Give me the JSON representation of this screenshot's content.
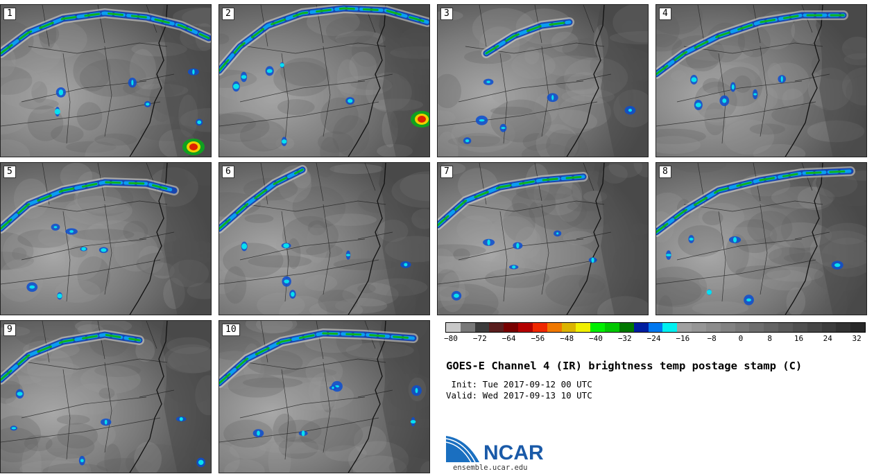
{
  "panels": [
    {
      "label": "1"
    },
    {
      "label": "2"
    },
    {
      "label": "3"
    },
    {
      "label": "4"
    },
    {
      "label": "5"
    },
    {
      "label": "6"
    },
    {
      "label": "7"
    },
    {
      "label": "8"
    },
    {
      "label": "9"
    },
    {
      "label": "10"
    }
  ],
  "colorbar": {
    "colors": [
      "#c8c8c8",
      "#787878",
      "#3c3c3c",
      "#5a1e1e",
      "#780000",
      "#b40000",
      "#f02800",
      "#f07800",
      "#dcb400",
      "#f0f000",
      "#00f000",
      "#00c800",
      "#007800",
      "#001ea0",
      "#0078f0",
      "#00f0f0",
      "#a0a0a0",
      "#969696",
      "#8c8c8c",
      "#828282",
      "#787878",
      "#6e6e6e",
      "#646464",
      "#5a5a5a",
      "#505050",
      "#464646",
      "#3c3c3c",
      "#323232",
      "#282828"
    ],
    "ticks": [
      "−80",
      "−72",
      "−64",
      "−56",
      "−48",
      "−40",
      "−32",
      "−24",
      "−16",
      "−8",
      "0",
      "8",
      "16",
      "24",
      "32"
    ]
  },
  "title": "GOES-E Channel 4 (IR) brightness temp postage stamp (C)",
  "init": " Init: Tue 2017-09-12 00 UTC",
  "valid": "Valid: Wed 2017-09-13 10 UTC",
  "logo": {
    "name": "NCAR",
    "url": "ensemble.ucar.edu"
  }
}
